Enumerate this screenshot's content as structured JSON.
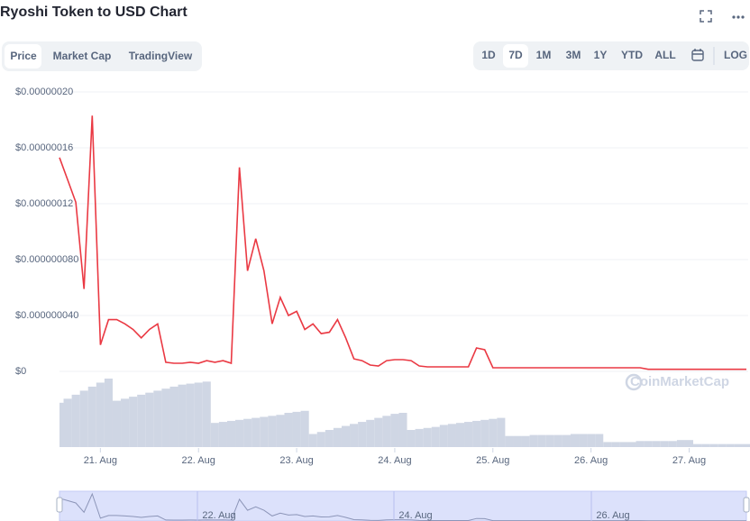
{
  "header": {
    "title": "Ryoshi Token to USD Chart"
  },
  "tabs": [
    "Price",
    "Market Cap",
    "TradingView"
  ],
  "ranges": [
    "1D",
    "7D",
    "1M",
    "3M",
    "1Y",
    "YTD",
    "ALL"
  ],
  "log_button": "LOG",
  "watermark": "CoinMarketCap",
  "navigator_labels": [
    "22. Aug",
    "24. Aug",
    "26. Aug"
  ],
  "chart_data": {
    "type": "line",
    "color": "#ea3943",
    "volume_color": "#cfd6e4",
    "grid": true,
    "ylim": [
      0,
      2e-07
    ],
    "yticks": [
      {
        "value": 0,
        "label": "$0"
      },
      {
        "value": 4e-08,
        "label": "$0.000000040"
      },
      {
        "value": 8e-08,
        "label": "$0.000000080"
      },
      {
        "value": 1.2e-07,
        "label": "$0.00000012"
      },
      {
        "value": 1.6e-07,
        "label": "$0.00000016"
      },
      {
        "value": 2e-07,
        "label": "$0.00000020"
      }
    ],
    "categories": [
      null,
      null,
      null,
      null,
      null,
      "21. Aug",
      null,
      null,
      null,
      null,
      null,
      null,
      null,
      null,
      null,
      null,
      null,
      "22. Aug",
      null,
      null,
      null,
      null,
      null,
      null,
      null,
      null,
      null,
      null,
      null,
      "23. Aug",
      null,
      null,
      null,
      null,
      null,
      null,
      null,
      null,
      null,
      null,
      null,
      "24. Aug",
      null,
      null,
      null,
      null,
      null,
      null,
      null,
      null,
      null,
      null,
      null,
      "25. Aug",
      null,
      null,
      null,
      null,
      null,
      null,
      null,
      null,
      null,
      null,
      null,
      "26. Aug",
      null,
      null,
      null,
      null,
      null,
      null,
      null,
      null,
      null,
      null,
      null,
      "27. Aug",
      null,
      null,
      null,
      null,
      null,
      null,
      null
    ],
    "values": [
      1.53e-07,
      1.37e-07,
      1.21e-07,
      5.9e-08,
      1.83e-07,
      1.9e-08,
      3.7e-08,
      3.7e-08,
      3.4e-08,
      3e-08,
      2.4e-08,
      3e-08,
      3.4e-08,
      6.5e-09,
      5.8e-09,
      5.8e-09,
      6.5e-09,
      5.8e-09,
      7.7e-09,
      6.5e-09,
      7.7e-09,
      5.8e-09,
      1.46e-07,
      7.2e-08,
      9.5e-08,
      7.2e-08,
      3.4e-08,
      5.3e-08,
      4e-08,
      4.3e-08,
      3e-08,
      3.4e-08,
      2.7e-08,
      2.8e-08,
      3.7e-08,
      2.4e-08,
      9e-09,
      7.7e-09,
      4.5e-09,
      3.9e-09,
      7.7e-09,
      8.4e-09,
      8.4e-09,
      7.7e-09,
      3.9e-09,
      3.2e-09,
      3.2e-09,
      3.2e-09,
      3.2e-09,
      3.2e-09,
      3.2e-09,
      1.68e-08,
      1.55e-08,
      2.6e-09,
      2.6e-09,
      2.6e-09,
      2.6e-09,
      2.6e-09,
      2.6e-09,
      2.6e-09,
      2.6e-09,
      2.6e-09,
      2.6e-09,
      2.6e-09,
      2.6e-09,
      2.6e-09,
      2.6e-09,
      2.6e-09,
      2.6e-09,
      2.6e-09,
      2.6e-09,
      2.6e-09,
      1.5e-09,
      1.5e-09,
      1.5e-09,
      1.5e-09,
      1.5e-09,
      1.5e-09,
      1.5e-09,
      1.5e-09,
      1.5e-09,
      1.5e-09,
      1.5e-09,
      1.5e-09,
      1.5e-09
    ],
    "volume": [
      44,
      48,
      52,
      56,
      60,
      64,
      68,
      46,
      48,
      50,
      52,
      54,
      56,
      58,
      60,
      62,
      63,
      64,
      65,
      24,
      25,
      26,
      27,
      28,
      29,
      30,
      31,
      32,
      34,
      35,
      36,
      13,
      15,
      17,
      19,
      21,
      23,
      25,
      27,
      29,
      31,
      33,
      34,
      17,
      18,
      19,
      20,
      22,
      23,
      24,
      25,
      26,
      27,
      28,
      29,
      11,
      11,
      11,
      12,
      12,
      12,
      12,
      12,
      13,
      13,
      13,
      13,
      5,
      5,
      5,
      5,
      6,
      6,
      6,
      6,
      6,
      7,
      7,
      3,
      3,
      3,
      3,
      3,
      3,
      3
    ]
  }
}
